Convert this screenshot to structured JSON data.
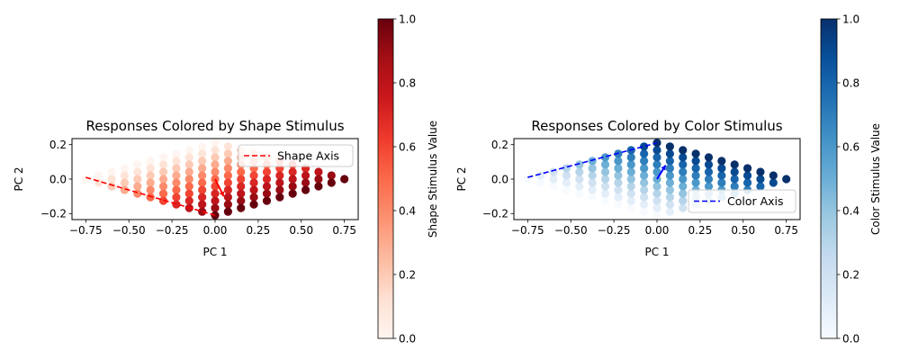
{
  "chart_data": [
    {
      "type": "scatter",
      "title": "Responses Colored by Shape Stimulus",
      "xlabel": "PC 1",
      "ylabel": "PC 2",
      "xlim": [
        -0.83,
        0.83
      ],
      "ylim": [
        -0.235,
        0.235
      ],
      "xticks": [
        -0.75,
        -0.5,
        -0.25,
        0.0,
        0.25,
        0.5,
        0.75
      ],
      "xtick_labels": [
        "−0.75",
        "−0.50",
        "−0.25",
        "0.00",
        "0.25",
        "0.50",
        "0.75"
      ],
      "yticks": [
        -0.2,
        0.0,
        0.2
      ],
      "ytick_labels": [
        "−0.2",
        "0.0",
        "0.2"
      ],
      "colormap": "Reds",
      "color_by": "shape",
      "legend": {
        "label": "Shape Axis",
        "position": "upper right"
      },
      "axis_line": {
        "name": "Shape Axis",
        "x": [
          -0.75,
          0.0
        ],
        "y": [
          0.01,
          -0.21
        ],
        "color": "#ff0000",
        "style": "dashed"
      },
      "arrow": {
        "from": [
          0.0,
          0.0
        ],
        "to": [
          0.05,
          -0.1
        ],
        "color": "#ff0000"
      },
      "colorbar": {
        "label": "Shape Stimulus Value",
        "range": [
          0,
          1
        ],
        "ticks": [
          "0.0",
          "0.2",
          "0.4",
          "0.6",
          "0.8",
          "1.0"
        ]
      },
      "points_model": {
        "n": 11,
        "shape_values": [
          0,
          0.1,
          0.2,
          0.3,
          0.4,
          0.5,
          0.6,
          0.7,
          0.8,
          0.9,
          1.0
        ],
        "color_values": [
          0,
          0.1,
          0.2,
          0.3,
          0.4,
          0.5,
          0.6,
          0.7,
          0.8,
          0.9,
          1.0
        ],
        "x": "0.75*(shape + color - 1)",
        "y": "0.21*(color - shape)"
      }
    },
    {
      "type": "scatter",
      "title": "Responses Colored by Color Stimulus",
      "xlabel": "PC 1",
      "ylabel": "PC 2",
      "xlim": [
        -0.83,
        0.83
      ],
      "ylim": [
        -0.235,
        0.235
      ],
      "xticks": [
        -0.75,
        -0.5,
        -0.25,
        0.0,
        0.25,
        0.5,
        0.75
      ],
      "xtick_labels": [
        "−0.75",
        "−0.50",
        "−0.25",
        "0.00",
        "0.25",
        "0.50",
        "0.75"
      ],
      "yticks": [
        -0.2,
        0.0,
        0.2
      ],
      "ytick_labels": [
        "−0.2",
        "0.0",
        "0.2"
      ],
      "colormap": "Blues",
      "color_by": "color",
      "legend": {
        "label": "Color Axis",
        "position": "lower right"
      },
      "axis_line": {
        "name": "Color Axis",
        "x": [
          -0.75,
          0.0
        ],
        "y": [
          0.01,
          0.21
        ],
        "color": "#0000ff",
        "style": "dashed"
      },
      "arrow": {
        "from": [
          0.0,
          0.0
        ],
        "to": [
          0.05,
          0.08
        ],
        "color": "#0000ff"
      },
      "colorbar": {
        "label": "Color Stimulus Value",
        "range": [
          0,
          1
        ],
        "ticks": [
          "0.0",
          "0.2",
          "0.4",
          "0.6",
          "0.8",
          "1.0"
        ]
      },
      "points_model": {
        "n": 11,
        "shape_values": [
          0,
          0.1,
          0.2,
          0.3,
          0.4,
          0.5,
          0.6,
          0.7,
          0.8,
          0.9,
          1.0
        ],
        "color_values": [
          0,
          0.1,
          0.2,
          0.3,
          0.4,
          0.5,
          0.6,
          0.7,
          0.8,
          0.9,
          1.0
        ],
        "x": "0.75*(shape + color - 1)",
        "y": "0.21*(color - shape)"
      }
    }
  ]
}
